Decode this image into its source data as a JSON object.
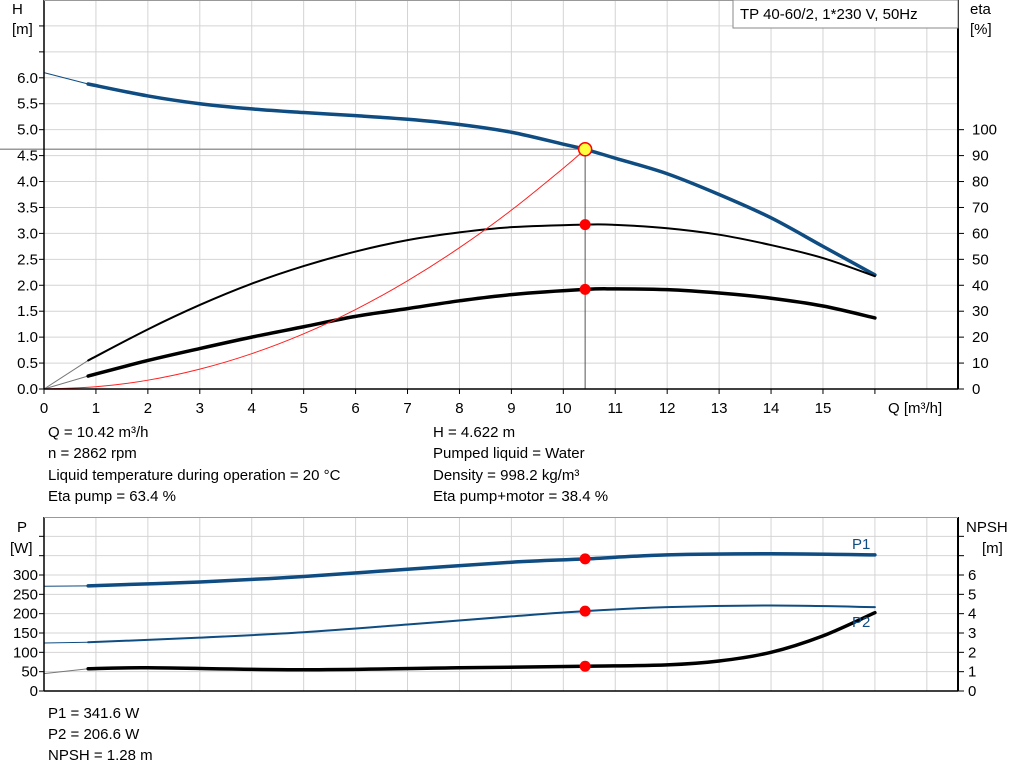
{
  "chart_data": [
    {
      "type": "line",
      "title": "TP 40-60/2, 1*230 V, 50Hz",
      "xlabel": "Q [m³/h]",
      "ylabel_left": [
        "H",
        "[m]"
      ],
      "ylabel_right": [
        "eta",
        "[%]"
      ],
      "xlim": [
        0,
        17.6
      ],
      "ylim_left": [
        0,
        7.5
      ],
      "ylim_right": [
        0,
        150
      ],
      "grid": true,
      "x_ticks": [
        "0",
        "1",
        "2",
        "3",
        "4",
        "5",
        "6",
        "7",
        "8",
        "9",
        "10",
        "11",
        "12",
        "13",
        "14",
        "15"
      ],
      "y_ticks_left": [
        "0.0",
        "0.5",
        "1.0",
        "1.5",
        "2.0",
        "2.5",
        "3.0",
        "3.5",
        "4.0",
        "4.5",
        "5.0",
        "5.5",
        "6.0"
      ],
      "y_ticks_right": [
        "0",
        "10",
        "20",
        "30",
        "40",
        "50",
        "60",
        "70",
        "80",
        "90",
        "100"
      ],
      "series": [
        {
          "id": "head",
          "axis": "left",
          "color": "#0f4c81",
          "width": 3.5,
          "x": [
            0.85,
            2,
            3,
            4,
            5,
            6,
            7,
            8,
            9,
            10,
            10.42,
            11,
            12,
            13,
            14,
            15,
            16
          ],
          "y": [
            5.88,
            5.65,
            5.5,
            5.4,
            5.33,
            5.27,
            5.2,
            5.1,
            4.95,
            4.72,
            4.622,
            4.45,
            4.15,
            3.75,
            3.3,
            2.75,
            2.2
          ],
          "extension": {
            "x": [
              0,
              0.85
            ],
            "y": [
              6.1,
              5.88
            ]
          }
        },
        {
          "id": "eta-pump",
          "axis": "right",
          "color": "#000000",
          "width": 2,
          "x": [
            0.85,
            2,
            3,
            4,
            5,
            6,
            7,
            8,
            9,
            10.42,
            11,
            12,
            13,
            14,
            15,
            16
          ],
          "y": [
            11,
            23,
            32.4,
            40.6,
            47.4,
            53,
            57.4,
            60.4,
            62.4,
            63.4,
            63.3,
            62,
            59.5,
            55.5,
            50.5,
            43.5
          ],
          "extension": {
            "x": [
              0,
              0.85
            ],
            "y": [
              0,
              11
            ]
          }
        },
        {
          "id": "eta-pump-motor",
          "axis": "right",
          "color": "#000000",
          "width": 3.5,
          "x": [
            0.85,
            2,
            3,
            4,
            5,
            6,
            7,
            8,
            9,
            10.42,
            11,
            12,
            13,
            14,
            15,
            16
          ],
          "y": [
            5,
            11,
            15.6,
            20,
            24,
            28,
            31,
            34,
            36.4,
            38.4,
            38.6,
            38.3,
            37,
            35,
            32,
            27.4
          ],
          "extension": {
            "x": [
              0,
              0.85
            ],
            "y": [
              0,
              5
            ]
          }
        },
        {
          "id": "system-curve",
          "axis": "left",
          "color": "#ff2020",
          "width": 1,
          "x": [
            0,
            1,
            2,
            3,
            4,
            5,
            6,
            7,
            8,
            9,
            10,
            10.42
          ],
          "y": [
            0,
            0.043,
            0.17,
            0.383,
            0.681,
            1.064,
            1.532,
            2.086,
            2.724,
            3.448,
            4.257,
            4.622
          ]
        }
      ],
      "duty_point": {
        "Q": 10.42,
        "H": 4.622,
        "eta_pump": 63.4,
        "eta_pump_motor": 38.4
      }
    },
    {
      "type": "line",
      "ylabel_left": [
        "P",
        "[W]"
      ],
      "ylabel_right": [
        "NPSH",
        "[m]"
      ],
      "xlim": [
        0,
        17.6
      ],
      "ylim_left": [
        0,
        450
      ],
      "ylim_right": [
        0,
        9
      ],
      "grid": true,
      "y_ticks_left": [
        "0",
        "50",
        "100",
        "150",
        "200",
        "250",
        "300"
      ],
      "y_ticks_right": [
        "0",
        "1",
        "2",
        "3",
        "4",
        "5",
        "6"
      ],
      "series": [
        {
          "id": "p1",
          "name": "P1",
          "axis": "left",
          "color": "#0f4c81",
          "width": 3.5,
          "x": [
            0.85,
            3,
            5,
            7,
            9,
            10.42,
            12,
            14,
            16
          ],
          "y": [
            272,
            282,
            296,
            315,
            333,
            341.6,
            352,
            355,
            352
          ],
          "extension": {
            "x": [
              0,
              0.85
            ],
            "y": [
              271,
              272
            ]
          }
        },
        {
          "id": "p2",
          "name": "P2",
          "axis": "left",
          "color": "#0f4c81",
          "width": 2,
          "x": [
            0.85,
            3,
            5,
            7,
            9,
            10.42,
            12,
            14,
            16
          ],
          "y": [
            126,
            138,
            152,
            172,
            193,
            206.6,
            217,
            221,
            217
          ],
          "extension": {
            "x": [
              0,
              0.85
            ],
            "y": [
              124,
              126
            ]
          }
        },
        {
          "id": "npsh",
          "axis": "right",
          "color": "#000000",
          "width": 3.5,
          "x": [
            0.85,
            2,
            5,
            8,
            10.42,
            12,
            13,
            14,
            15,
            16
          ],
          "y": [
            1.15,
            1.2,
            1.1,
            1.2,
            1.28,
            1.35,
            1.55,
            2.0,
            2.85,
            4.05
          ],
          "extension": {
            "x": [
              0,
              0.85
            ],
            "y": [
              0.9,
              1.15
            ]
          }
        }
      ],
      "duty_point": {
        "Q": 10.42,
        "P1": 341.6,
        "P2": 206.6,
        "NPSH": 1.28
      }
    }
  ],
  "info_top": {
    "left": [
      "Q = 10.42 m³/h",
      "n = 2862 rpm",
      "Liquid temperature during operation = 20 °C",
      "Eta pump = 63.4 %"
    ],
    "right": [
      "H = 4.622 m",
      "Pumped liquid = Water",
      "Density = 998.2 kg/m³",
      "Eta pump+motor = 38.4 %"
    ]
  },
  "info_bottom": [
    "P1 = 341.6 W",
    "P2 = 206.6 W",
    "NPSH = 1.28 m"
  ],
  "colors": {
    "head": "#0f4c81",
    "marker": "#ff0000",
    "duty_fill": "#ffff40",
    "grid": "#d4d4d4"
  }
}
